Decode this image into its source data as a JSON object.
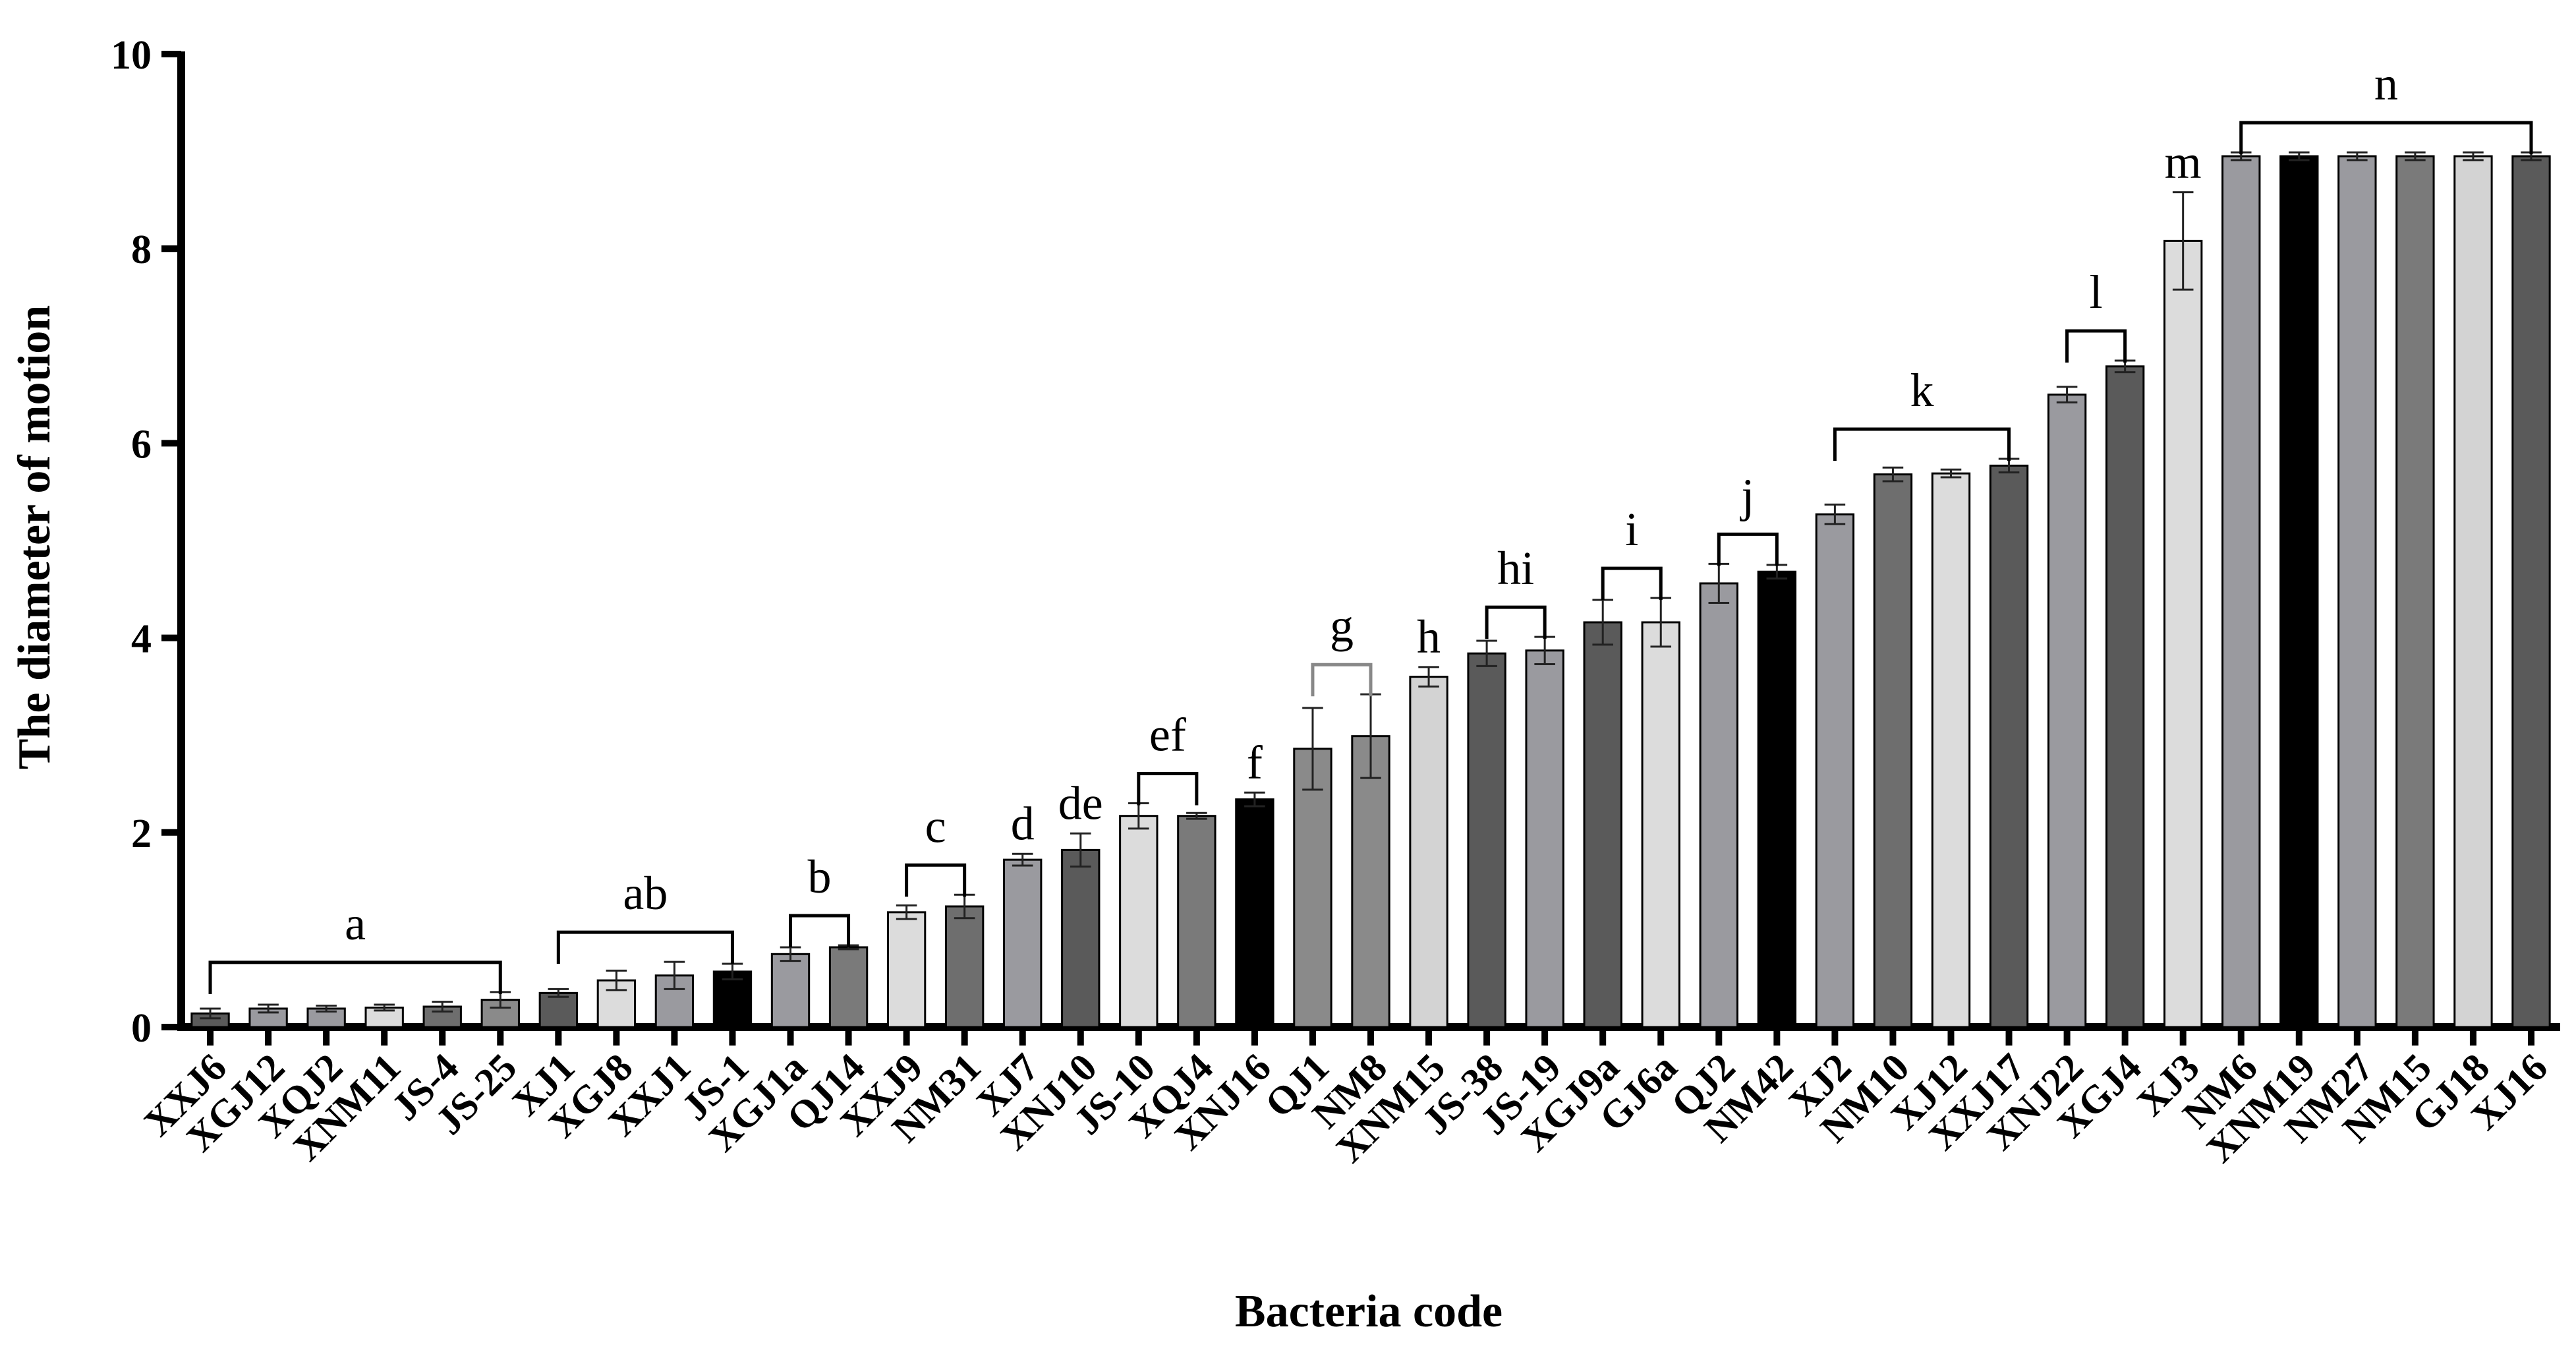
{
  "chart_data": {
    "type": "bar",
    "title": "",
    "xlabel": "Bacteria code",
    "ylabel": "The diameter of  motion",
    "ylim": [
      0,
      10
    ],
    "yticks": [
      0,
      2,
      4,
      6,
      8,
      10
    ],
    "grid": false,
    "categories": [
      "XXJ6",
      "XGJ12",
      "XQJ2",
      "XNM11",
      "JS-4",
      "JS-25",
      "XJ1",
      "XGJ8",
      "XXJ1",
      "JS-1",
      "XGJ1a",
      "QJ14",
      "XXJ9",
      "NM31",
      "XJ7",
      "XNJ10",
      "JS-10",
      "XQJ4",
      "XNJ16",
      "QJ1",
      "NM8",
      "XNM15",
      "JS-38",
      "JS-19",
      "XGJ9a",
      "GJ6a",
      "QJ2",
      "NM42",
      "XJ2",
      "NM10",
      "XJ12",
      "XXJ17",
      "XNJ22",
      "XGJ4",
      "XJ3",
      "NM6",
      "XNM19",
      "NM27",
      "NM15",
      "GJ18",
      "XJ16"
    ],
    "values": [
      0.14,
      0.19,
      0.19,
      0.2,
      0.21,
      0.28,
      0.35,
      0.48,
      0.53,
      0.57,
      0.75,
      0.82,
      1.18,
      1.24,
      1.72,
      1.82,
      2.17,
      2.17,
      2.34,
      2.86,
      2.99,
      3.6,
      3.84,
      3.87,
      4.16,
      4.16,
      4.56,
      4.68,
      5.27,
      5.68,
      5.69,
      5.77,
      6.5,
      6.79,
      8.08,
      8.95,
      8.95,
      8.95,
      8.95,
      8.95,
      8.95
    ],
    "errors": [
      0.05,
      0.04,
      0.03,
      0.03,
      0.05,
      0.08,
      0.04,
      0.1,
      0.14,
      0.08,
      0.07,
      0.02,
      0.07,
      0.12,
      0.06,
      0.17,
      0.13,
      0.03,
      0.07,
      0.42,
      0.43,
      0.1,
      0.13,
      0.14,
      0.23,
      0.25,
      0.2,
      0.07,
      0.1,
      0.07,
      0.04,
      0.07,
      0.08,
      0.06,
      0.5,
      0.04,
      0.04,
      0.04,
      0.04,
      0.04,
      0.04
    ],
    "colors": [
      "#5a5a5a",
      "#9a9a9f",
      "#9a9a9f",
      "#dcdcdc",
      "#6e6e6e",
      "#8a8a8a",
      "#5a5a5a",
      "#dcdcdc",
      "#9a9a9f",
      "#000000",
      "#9a9a9f",
      "#7a7a7a",
      "#dcdcdc",
      "#6e6e6e",
      "#9a9a9f",
      "#5a5a5a",
      "#dcdcdc",
      "#7a7a7a",
      "#000000",
      "#8a8a8a",
      "#8a8a8a",
      "#d3d3d3",
      "#5a5a5a",
      "#9a9a9f",
      "#5a5a5a",
      "#dcdcdc",
      "#9a9a9f",
      "#000000",
      "#9a9a9f",
      "#6e6e6e",
      "#dcdcdc",
      "#5a5a5a",
      "#9a9a9f",
      "#5a5a5a",
      "#dcdcdc",
      "#9a9a9f",
      "#000000",
      "#9a9a9f",
      "#7a7a7a",
      "#d3d3d3",
      "#5a5a5a"
    ],
    "significance_groups": [
      {
        "label": "a",
        "from": 0,
        "to": 5,
        "bracket": true
      },
      {
        "label": "ab",
        "from": 6,
        "to": 9,
        "bracket": true
      },
      {
        "label": "b",
        "from": 10,
        "to": 11,
        "bracket": true
      },
      {
        "label": "c",
        "from": 12,
        "to": 13,
        "bracket": true
      },
      {
        "label": "d",
        "from": 14,
        "to": 14,
        "bracket": false
      },
      {
        "label": "de",
        "from": 15,
        "to": 15,
        "bracket": false
      },
      {
        "label": "ef",
        "from": 16,
        "to": 17,
        "bracket": true
      },
      {
        "label": "f",
        "from": 18,
        "to": 18,
        "bracket": false
      },
      {
        "label": "g",
        "from": 19,
        "to": 20,
        "bracket": true
      },
      {
        "label": "h",
        "from": 21,
        "to": 21,
        "bracket": false
      },
      {
        "label": "hi",
        "from": 22,
        "to": 23,
        "bracket": true
      },
      {
        "label": "i",
        "from": 24,
        "to": 25,
        "bracket": true
      },
      {
        "label": "j",
        "from": 26,
        "to": 27,
        "bracket": true
      },
      {
        "label": "k",
        "from": 28,
        "to": 31,
        "bracket": true
      },
      {
        "label": "l",
        "from": 32,
        "to": 33,
        "bracket": true
      },
      {
        "label": "m",
        "from": 34,
        "to": 34,
        "bracket": false
      },
      {
        "label": "n",
        "from": 35,
        "to": 40,
        "bracket": true
      }
    ]
  }
}
